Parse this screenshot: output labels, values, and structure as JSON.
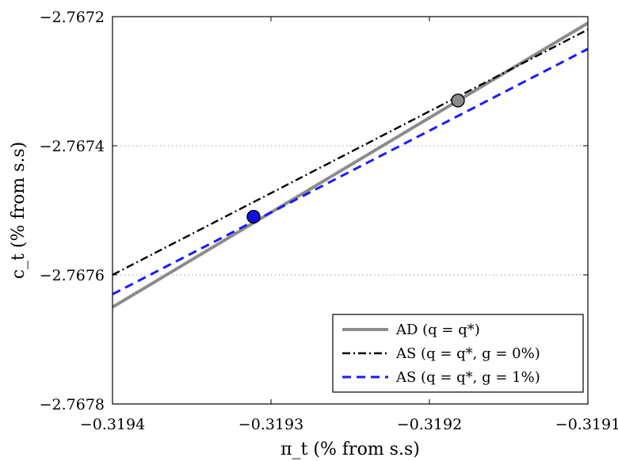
{
  "chart_data": {
    "type": "line",
    "title": "",
    "xlabel": "π_t (% from s.s)",
    "ylabel": "c_t (% from s.s)",
    "xlim": [
      -0.3194,
      -0.3191
    ],
    "ylim": [
      -2.7678,
      -2.7672
    ],
    "xticks": [
      -0.3194,
      -0.3193,
      -0.3192,
      -0.3191
    ],
    "xtick_labels": [
      "−0.3194",
      "−0.3193",
      "−0.3192",
      "−0.3191"
    ],
    "yticks": [
      -2.7678,
      -2.7676,
      -2.7674,
      -2.7672
    ],
    "ytick_labels": [
      "−2.7678",
      "−2.7676",
      "−2.7674",
      "−2.7672"
    ],
    "grid": "horizontal dotted",
    "legend_position": "bottom-right",
    "series": [
      {
        "name": "AD (q = q*)",
        "style": "solid",
        "color": "#8c8c8c",
        "x": [
          -0.3194,
          -0.3191
        ],
        "y": [
          -2.76765,
          -2.76721
        ]
      },
      {
        "name": "AS (q = q*, g = 0%)",
        "style": "dashdot",
        "color": "#000000",
        "x": [
          -0.3194,
          -0.3191
        ],
        "y": [
          -2.7676,
          -2.76722
        ]
      },
      {
        "name": "AS (q = q*, g = 1%)",
        "style": "dashed",
        "color": "#1a1aff",
        "x": [
          -0.3194,
          -0.3191
        ],
        "y": [
          -2.76763,
          -2.76725
        ]
      }
    ],
    "markers": [
      {
        "name": "AD-AS(g=0%) intersection",
        "x": -0.319182,
        "y": -2.76733,
        "color": "#8c8c8c"
      },
      {
        "name": "AD-AS(g=1%) intersection",
        "x": -0.319311,
        "y": -2.76751,
        "color": "#1010e0"
      }
    ]
  }
}
